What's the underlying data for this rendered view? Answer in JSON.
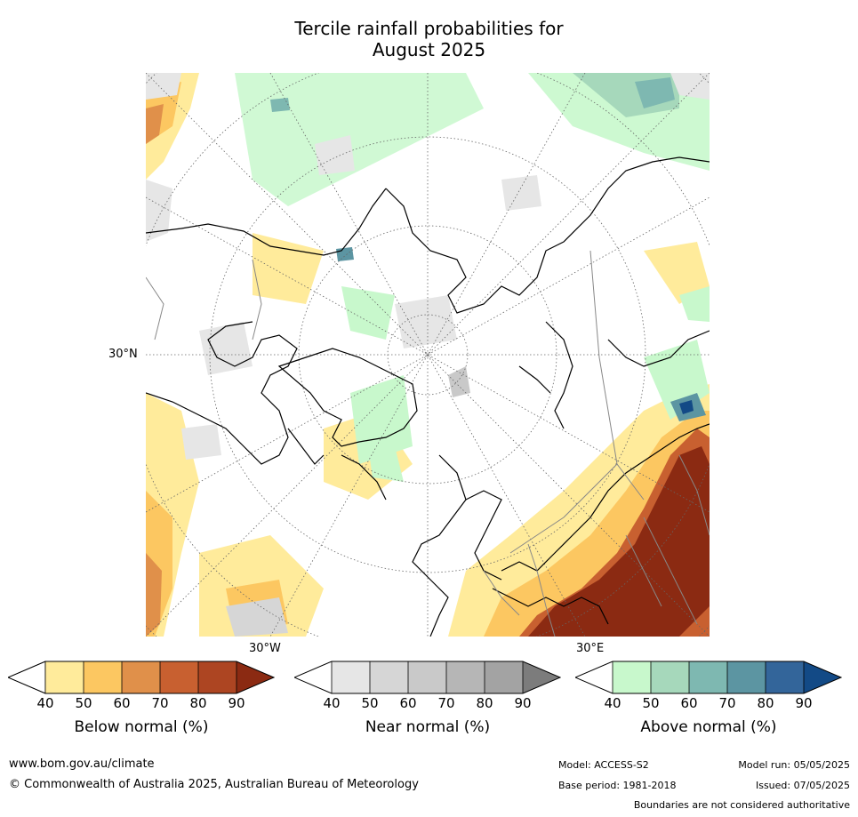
{
  "title_line1": "Tercile rainfall probabilities for",
  "title_line2": "August 2025",
  "map": {
    "lat_label": "30°N",
    "lon_label_left": "30°W",
    "lon_label_right": "30°E"
  },
  "colorbars": [
    {
      "label": "Below normal (%)",
      "ticks": [
        "40",
        "50",
        "60",
        "70",
        "80",
        "90"
      ],
      "colors": [
        "#ffffff",
        "#ffeb9b",
        "#fcc761",
        "#e0904a",
        "#c86030",
        "#ad4522",
        "#8b2a12"
      ]
    },
    {
      "label": "Near normal (%)",
      "ticks": [
        "40",
        "50",
        "60",
        "70",
        "80",
        "90"
      ],
      "colors": [
        "#ffffff",
        "#e6e6e6",
        "#d6d6d6",
        "#c9c9c9",
        "#b6b6b6",
        "#a3a3a3",
        "#7c7c7c"
      ]
    },
    {
      "label": "Above normal (%)",
      "ticks": [
        "40",
        "50",
        "60",
        "70",
        "80",
        "90"
      ],
      "colors": [
        "#ffffff",
        "#c8f8cc",
        "#a6d8bb",
        "#7eb8b1",
        "#5c95a2",
        "#33659a",
        "#134a86"
      ]
    }
  ],
  "footer": {
    "website": "www.bom.gov.au/climate",
    "copyright": "© Commonwealth of Australia 2025, Australian Bureau of Meteorology",
    "model": "Model: ACCESS-S2",
    "model_run": "Model run: 05/05/2025",
    "base_period": "Base period: 1981-2018",
    "issued": "Issued: 07/05/2025",
    "disclaimer": "Boundaries are not considered authoritative"
  }
}
